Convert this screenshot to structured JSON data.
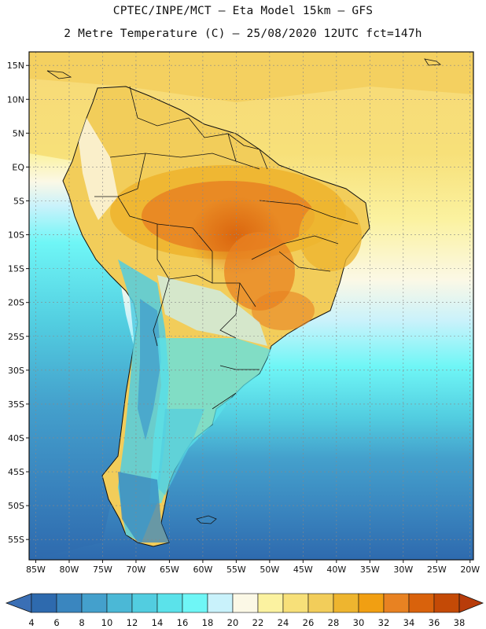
{
  "header": {
    "line1": "CPTEC/INPE/MCT –  Eta Model 15km – GFS",
    "line2": "2 Metre Temperature (C) – 25/08/2020 12UTC fct=147h"
  },
  "map": {
    "lon_range": [
      -86,
      -19.5
    ],
    "lat_range": [
      -58,
      17
    ],
    "lat_ticks": [
      {
        "v": 15,
        "label": "15N"
      },
      {
        "v": 10,
        "label": "10N"
      },
      {
        "v": 5,
        "label": "5N"
      },
      {
        "v": 0,
        "label": "EQ"
      },
      {
        "v": -5,
        "label": "5S"
      },
      {
        "v": -10,
        "label": "10S"
      },
      {
        "v": -15,
        "label": "15S"
      },
      {
        "v": -20,
        "label": "20S"
      },
      {
        "v": -25,
        "label": "25S"
      },
      {
        "v": -30,
        "label": "30S"
      },
      {
        "v": -35,
        "label": "35S"
      },
      {
        "v": -40,
        "label": "40S"
      },
      {
        "v": -45,
        "label": "45S"
      },
      {
        "v": -50,
        "label": "50S"
      },
      {
        "v": -55,
        "label": "55S"
      }
    ],
    "lon_ticks": [
      {
        "v": -85,
        "label": "85W"
      },
      {
        "v": -80,
        "label": "80W"
      },
      {
        "v": -75,
        "label": "75W"
      },
      {
        "v": -70,
        "label": "70W"
      },
      {
        "v": -65,
        "label": "65W"
      },
      {
        "v": -60,
        "label": "60W"
      },
      {
        "v": -55,
        "label": "55W"
      },
      {
        "v": -50,
        "label": "50W"
      },
      {
        "v": -45,
        "label": "45W"
      },
      {
        "v": -40,
        "label": "40W"
      },
      {
        "v": -35,
        "label": "35W"
      },
      {
        "v": -30,
        "label": "30W"
      },
      {
        "v": -25,
        "label": "25W"
      },
      {
        "v": -20,
        "label": "20W"
      }
    ]
  },
  "colorbar": {
    "below_color": "#3a6fb5",
    "above_color": "#b83c0a",
    "labels": [
      "4",
      "6",
      "8",
      "10",
      "12",
      "14",
      "16",
      "18",
      "20",
      "22",
      "24",
      "26",
      "28",
      "30",
      "32",
      "34",
      "36",
      "38"
    ],
    "colors": [
      "#2e6aae",
      "#3a86bf",
      "#44a0cc",
      "#4bb8d6",
      "#52cde0",
      "#5be2ea",
      "#6ff6f6",
      "#c9f2fb",
      "#fbf8e6",
      "#fbf2a0",
      "#f7e079",
      "#f2cd5a",
      "#eeb52f",
      "#f19f12",
      "#e88222",
      "#d9620c",
      "#c44a06"
    ]
  }
}
